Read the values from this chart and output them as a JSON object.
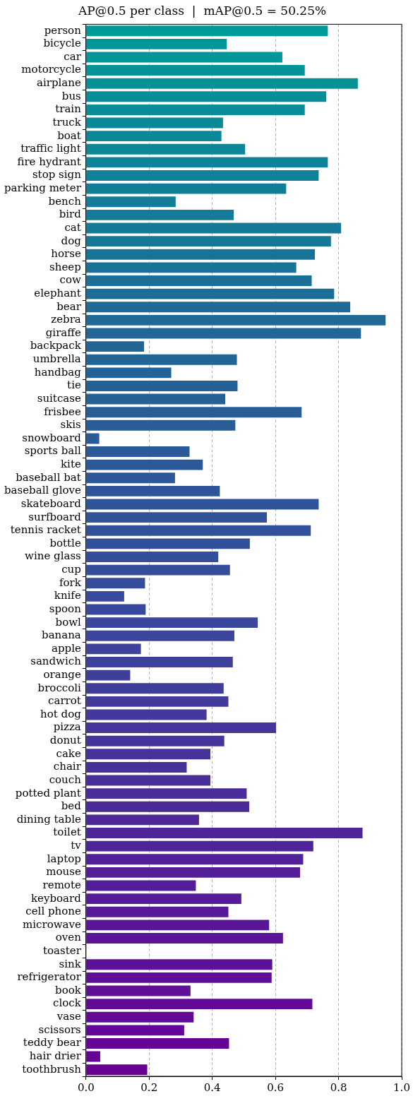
{
  "chart_data": {
    "type": "bar",
    "orientation": "horizontal",
    "title": "AP@0.5 per class  |  mAP@0.5 = 50.25%",
    "categories": [
      "person",
      "bicycle",
      "car",
      "motorcycle",
      "airplane",
      "bus",
      "train",
      "truck",
      "boat",
      "traffic light",
      "fire hydrant",
      "stop sign",
      "parking meter",
      "bench",
      "bird",
      "cat",
      "dog",
      "horse",
      "sheep",
      "cow",
      "elephant",
      "bear",
      "zebra",
      "giraffe",
      "backpack",
      "umbrella",
      "handbag",
      "tie",
      "suitcase",
      "frisbee",
      "skis",
      "snowboard",
      "sports ball",
      "kite",
      "baseball bat",
      "baseball glove",
      "skateboard",
      "surfboard",
      "tennis racket",
      "bottle",
      "wine glass",
      "cup",
      "fork",
      "knife",
      "spoon",
      "bowl",
      "banana",
      "apple",
      "sandwich",
      "orange",
      "broccoli",
      "carrot",
      "hot dog",
      "pizza",
      "donut",
      "cake",
      "chair",
      "couch",
      "potted plant",
      "bed",
      "dining table",
      "toilet",
      "tv",
      "laptop",
      "mouse",
      "remote",
      "keyboard",
      "cell phone",
      "microwave",
      "oven",
      "toaster",
      "sink",
      "refrigerator",
      "book",
      "clock",
      "vase",
      "scissors",
      "teddy bear",
      "hair drier",
      "toothbrush"
    ],
    "values": [
      0.766,
      0.446,
      0.622,
      0.693,
      0.861,
      0.761,
      0.693,
      0.434,
      0.429,
      0.504,
      0.766,
      0.737,
      0.634,
      0.284,
      0.468,
      0.808,
      0.776,
      0.725,
      0.666,
      0.715,
      0.786,
      0.837,
      0.949,
      0.871,
      0.184,
      0.478,
      0.27,
      0.48,
      0.441,
      0.683,
      0.473,
      0.042,
      0.328,
      0.37,
      0.282,
      0.424,
      0.737,
      0.573,
      0.712,
      0.519,
      0.419,
      0.456,
      0.187,
      0.121,
      0.189,
      0.544,
      0.47,
      0.174,
      0.465,
      0.14,
      0.436,
      0.451,
      0.382,
      0.602,
      0.438,
      0.394,
      0.319,
      0.394,
      0.509,
      0.517,
      0.358,
      0.876,
      0.72,
      0.688,
      0.678,
      0.348,
      0.492,
      0.451,
      0.58,
      0.624,
      0,
      0.59,
      0.588,
      0.331,
      0.717,
      0.341,
      0.311,
      0.453,
      0.045,
      0.194
    ],
    "colors": [
      "#009a9a",
      "#01989a",
      "#03969a",
      "#049399",
      "#069199",
      "#078f99",
      "#098d99",
      "#0a8a99",
      "#0b8899",
      "#0d8698",
      "#0e8498",
      "#108298",
      "#117f98",
      "#137d98",
      "#147b98",
      "#167997",
      "#177797",
      "#187497",
      "#1a7297",
      "#1b7097",
      "#1d6e97",
      "#1e6b96",
      "#206996",
      "#216796",
      "#226696",
      "#236497",
      "#246397",
      "#246197",
      "#266097",
      "#285e98",
      "#295d98",
      "#295b98",
      "#2a5a98",
      "#2c5899",
      "#2d5799",
      "#2e5599",
      "#30549a",
      "#31539a",
      "#31519a",
      "#32509a",
      "#344e9b",
      "#354d9b",
      "#364b9b",
      "#374a9b",
      "#38489c",
      "#3a479c",
      "#3b459c",
      "#3d439c",
      "#3e419b",
      "#3f3f9b",
      "#413d9b",
      "#423a9b",
      "#43389b",
      "#45369b",
      "#45349b",
      "#46329a",
      "#48309a",
      "#492e9a",
      "#4a2c9a",
      "#4c2a9a",
      "#4e2899",
      "#4f2699",
      "#502499",
      "#522199",
      "#531f99",
      "#551d99",
      "#561b98",
      "#581998",
      "#591798",
      "#5b1598",
      "#5c1398",
      "#5d1198",
      "#5f0f97",
      "#600d97",
      "#620a97",
      "#630897",
      "#640697",
      "#660496",
      "#670296",
      "#680096"
    ],
    "xlim": [
      0,
      1.0
    ],
    "xticks": [
      {
        "value": 0,
        "label": "0.0"
      },
      {
        "value": 0.2,
        "label": "0.2"
      },
      {
        "value": 0.4,
        "label": "0.4"
      },
      {
        "value": 0.6,
        "label": "0.6"
      },
      {
        "value": 0.8,
        "label": "0.8"
      },
      {
        "value": 1.0,
        "label": "1.0"
      }
    ],
    "grid": "x",
    "legend": false
  }
}
